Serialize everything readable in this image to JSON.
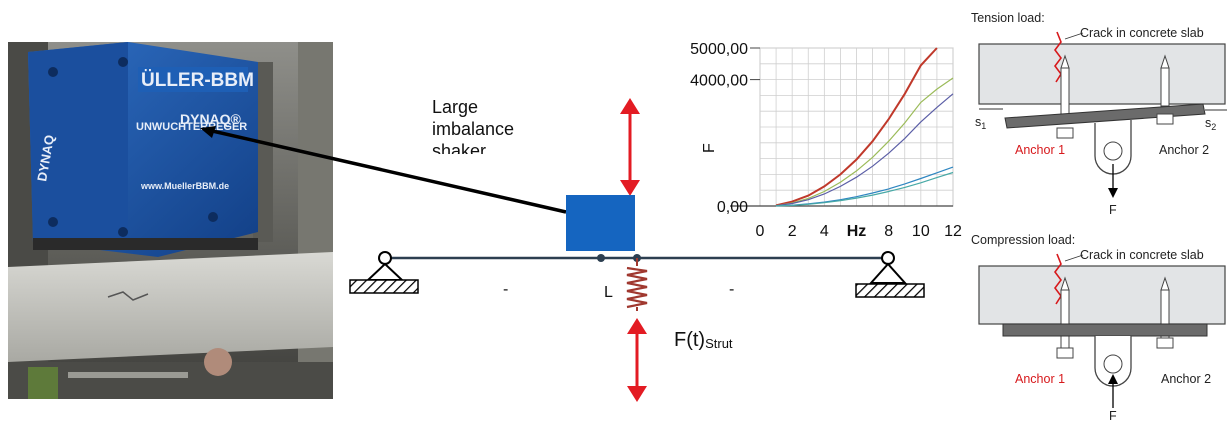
{
  "photo": {
    "brand_text": "ÜLLER-BBM",
    "model_text": "DYNAQ®",
    "sub_text": "UNWUCHTERREGER",
    "web_text": "www.MuellerBBM.de",
    "side_text": "DYNAQ"
  },
  "shaker_label": [
    "Large",
    "imbalance",
    "shaker"
  ],
  "beam": {
    "span_left": "-",
    "span_mid": "L",
    "span_right": "-",
    "strut_force_main": "F(t)",
    "strut_force_sub": "Strut"
  },
  "colors": {
    "shaker_block": "#1565c0",
    "arrow": "#e31b23",
    "spring": "#a0382f"
  },
  "chart_data": {
    "type": "line",
    "title": "",
    "xlabel": "Hz",
    "ylabel": "F",
    "x_ticks": [
      "0",
      "2",
      "4",
      "Hz",
      "8",
      "10",
      "12"
    ],
    "y_ticks": [
      "0,00",
      "4000,00",
      "5000,00"
    ],
    "xlim": [
      0,
      12
    ],
    "ylim": [
      0,
      5000
    ],
    "grid": true,
    "series": [
      {
        "color": "#c0392b",
        "x": [
          1,
          2,
          3,
          4,
          5,
          6,
          7,
          8,
          9,
          10,
          11
        ],
        "y": [
          20,
          140,
          330,
          620,
          1000,
          1470,
          2050,
          2750,
          3550,
          4450,
          5000
        ]
      },
      {
        "color": "#9bbb59",
        "x": [
          1,
          2,
          3,
          4,
          5,
          6,
          7,
          8,
          9,
          10,
          11,
          12
        ],
        "y": [
          10,
          95,
          240,
          460,
          750,
          1110,
          1540,
          2050,
          2630,
          3280,
          3700,
          4050
        ]
      },
      {
        "color": "#5b5ea6",
        "x": [
          1,
          2,
          3,
          4,
          5,
          6,
          7,
          8,
          9,
          10,
          11,
          12
        ],
        "y": [
          8,
          80,
          200,
          380,
          620,
          910,
          1260,
          1670,
          2140,
          2660,
          3120,
          3550
        ]
      },
      {
        "color": "#2e86c1",
        "x": [
          1,
          2,
          3,
          4,
          5,
          6,
          7,
          8,
          9,
          10,
          11,
          12
        ],
        "y": [
          2,
          25,
          65,
          125,
          200,
          295,
          410,
          540,
          700,
          870,
          1050,
          1230
        ]
      },
      {
        "color": "#48a9a6",
        "x": [
          1,
          2,
          3,
          4,
          5,
          6,
          7,
          8,
          9,
          10,
          11,
          12
        ],
        "y": [
          2,
          20,
          55,
          105,
          170,
          250,
          345,
          460,
          590,
          735,
          900,
          1060
        ]
      }
    ]
  },
  "tension": {
    "title": "Tension load:",
    "crack": "Crack in concrete slab",
    "s1": "s",
    "s1_sub": "1",
    "s2": "s",
    "s2_sub": "2",
    "anchor1": "Anchor 1",
    "anchor2": "Anchor 2",
    "force": "F"
  },
  "compression": {
    "title": "Compression load:",
    "crack": "Crack in concrete slab",
    "anchor1": "Anchor 1",
    "anchor2": "Anchor 2",
    "force": "F"
  }
}
